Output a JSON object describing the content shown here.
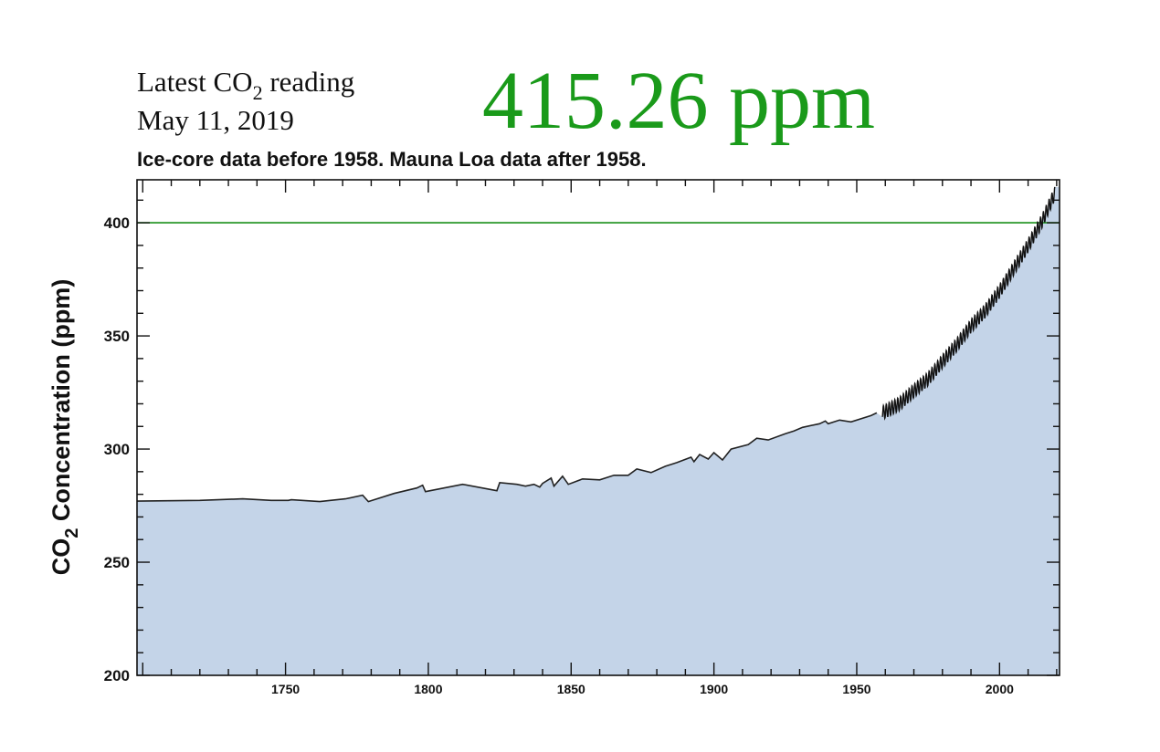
{
  "header": {
    "latest_label": "Latest CO",
    "latest_label_sub": "2",
    "latest_label_suffix": " reading",
    "date": "May 11, 2019",
    "latest_value": "415.26 ppm",
    "latest_value_color": "#1a9a1a"
  },
  "chart_data": {
    "type": "area",
    "title": "Ice-core data before 1958. Mauna Loa data after 1958.",
    "xlabel": "",
    "ylabel": "CO",
    "ylabel_sub": "2",
    "ylabel_suffix": " Concentration (ppm)",
    "xlim": [
      1698,
      2021
    ],
    "ylim": [
      200,
      419
    ],
    "xticks": [
      1750,
      1800,
      1850,
      1900,
      1950,
      2000
    ],
    "yticks": [
      200,
      250,
      300,
      350,
      400
    ],
    "reference_line": {
      "y": 400,
      "color": "#1a8f1a"
    },
    "fill_color": "#c4d4e8",
    "ice_core": {
      "x": [
        1698,
        1720,
        1735,
        1745,
        1751,
        1752,
        1762,
        1771,
        1777,
        1779,
        1788,
        1796,
        1798,
        1799,
        1812,
        1824,
        1825,
        1831,
        1834,
        1837,
        1839,
        1840,
        1843,
        1844,
        1847,
        1849,
        1854,
        1860,
        1865,
        1870,
        1873,
        1878,
        1883,
        1887,
        1892,
        1893,
        1895,
        1898,
        1900,
        1903,
        1906,
        1912,
        1915,
        1919,
        1925,
        1928,
        1931,
        1937,
        1939,
        1940,
        1944,
        1948,
        1955,
        1957
      ],
      "y": [
        277,
        277.3,
        278,
        277.3,
        277.3,
        277.6,
        276.8,
        278,
        279.6,
        276.8,
        280.4,
        282.8,
        284,
        281.2,
        284.4,
        281.6,
        285.2,
        284.4,
        283.6,
        284.4,
        283.2,
        284.8,
        287.2,
        283.6,
        288,
        284.4,
        286.8,
        286.4,
        288.4,
        288.4,
        291.2,
        289.6,
        292.4,
        294,
        296.4,
        294.4,
        297.6,
        295.6,
        298.4,
        295.2,
        300,
        302,
        304.8,
        304,
        306.8,
        308,
        309.6,
        311.2,
        312.4,
        311.2,
        312.8,
        312,
        314.8,
        316
      ]
    },
    "mauna_loa_annual_mean": {
      "x": [
        1959,
        1965,
        1970,
        1975,
        1980,
        1985,
        1990,
        1995,
        2000,
        2005,
        2010,
        2015,
        2019.4
      ],
      "y": [
        316,
        320,
        325.7,
        331,
        338.7,
        346,
        354.4,
        361,
        369.7,
        379.8,
        389.9,
        401,
        413
      ]
    },
    "mauna_loa_seasonal_amplitude_ppm": 3
  }
}
